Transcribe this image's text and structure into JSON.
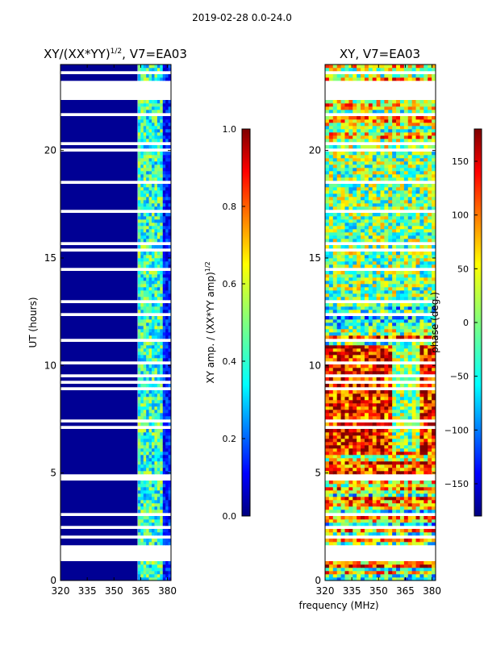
{
  "page_title": "2019-02-28 0.0-24.0",
  "shared_xlabel": "frequency (MHz)",
  "chart_data": [
    {
      "type": "heatmap",
      "title_prefix": "XY/(XX*YY)",
      "title_sup": "1/2",
      "title_suffix": ", V7=EA03",
      "xlabel": "",
      "ylabel": "UT (hours)",
      "xlim": [
        320,
        382
      ],
      "ylim": [
        0,
        24
      ],
      "xticks": [
        320,
        335,
        350,
        365,
        380
      ],
      "yticks": [
        0,
        5,
        10,
        15,
        20
      ],
      "colorbar": {
        "label": "XY amp. / (XX*YY amp)",
        "label_sup": "1/2",
        "range": [
          0.0,
          1.0
        ],
        "ticks": [
          "0.0",
          "0.2",
          "0.4",
          "0.6",
          "0.8",
          "1.0"
        ],
        "tick_values": [
          0.0,
          0.2,
          0.4,
          0.6,
          0.8,
          1.0
        ],
        "colormap": "jet"
      },
      "masked_bands_hours": [
        [
          1.0,
          1.6
        ],
        [
          22.3,
          23.3
        ]
      ],
      "description_values": "low amplitude (~0.0) below 363 MHz; 0.3-0.6 in 363-376 MHz"
    },
    {
      "type": "heatmap",
      "title": "XY, V7=EA03",
      "xlabel": "",
      "ylabel": "",
      "xlim": [
        320,
        382
      ],
      "ylim": [
        0,
        24
      ],
      "xticks": [
        320,
        335,
        350,
        365,
        380
      ],
      "yticks": [
        0,
        5,
        10,
        15,
        20
      ],
      "colorbar": {
        "label": "phase (deg.)",
        "range": [
          -180,
          180
        ],
        "ticks": [
          "150",
          "100",
          "50",
          "0",
          "−50",
          "−100",
          "−150"
        ],
        "tick_values": [
          150,
          100,
          50,
          0,
          -50,
          -100,
          -150
        ],
        "colormap": "jet"
      },
      "masked_bands_hours": [
        [
          1.0,
          1.6
        ],
        [
          22.3,
          23.3
        ]
      ]
    }
  ]
}
